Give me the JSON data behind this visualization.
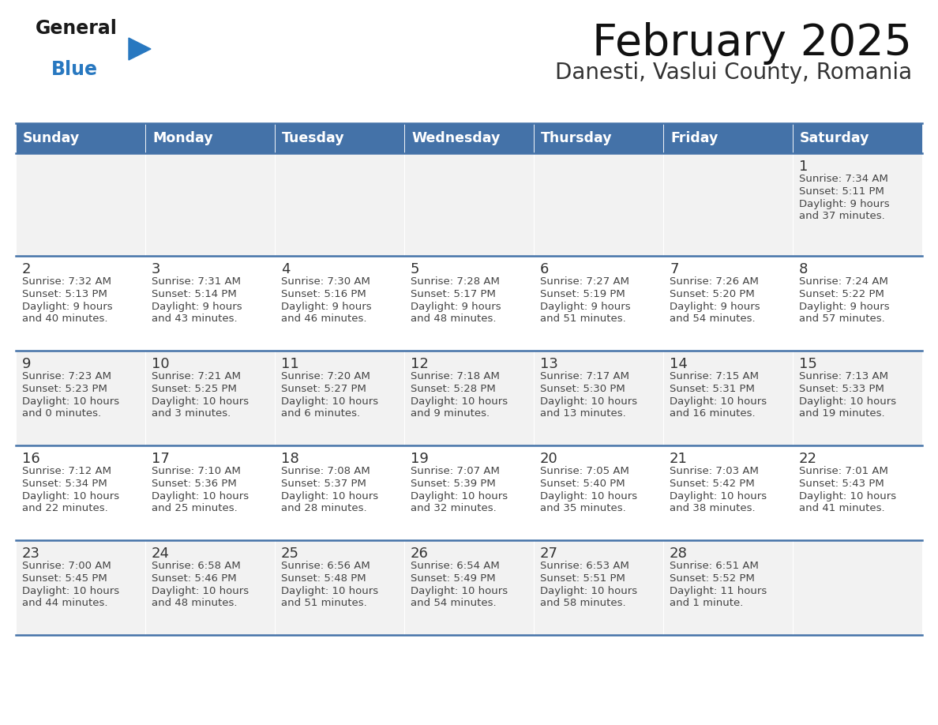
{
  "title": "February 2025",
  "subtitle": "Danesti, Vaslui County, Romania",
  "logo_text_general": "General",
  "logo_text_blue": "Blue",
  "days_of_week": [
    "Sunday",
    "Monday",
    "Tuesday",
    "Wednesday",
    "Thursday",
    "Friday",
    "Saturday"
  ],
  "header_bg_color": "#4472A8",
  "header_text_color": "#FFFFFF",
  "cell_bg_row0": "#F2F2F2",
  "cell_bg_row1": "#FFFFFF",
  "cell_bg_row2": "#F2F2F2",
  "cell_bg_row3": "#FFFFFF",
  "cell_bg_row4": "#F2F2F2",
  "day_number_color": "#333333",
  "day_text_color": "#444444",
  "title_color": "#111111",
  "subtitle_color": "#333333",
  "line_color": "#4472A8",
  "logo_general_color": "#1a1a1a",
  "logo_blue_color": "#2878C0",
  "logo_triangle_color": "#2878C0",
  "calendar_data": [
    [
      null,
      null,
      null,
      null,
      null,
      null,
      {
        "day": 1,
        "sunrise": "7:34 AM",
        "sunset": "5:11 PM",
        "daylight": "9 hours and 37 minutes."
      }
    ],
    [
      {
        "day": 2,
        "sunrise": "7:32 AM",
        "sunset": "5:13 PM",
        "daylight": "9 hours and 40 minutes."
      },
      {
        "day": 3,
        "sunrise": "7:31 AM",
        "sunset": "5:14 PM",
        "daylight": "9 hours and 43 minutes."
      },
      {
        "day": 4,
        "sunrise": "7:30 AM",
        "sunset": "5:16 PM",
        "daylight": "9 hours and 46 minutes."
      },
      {
        "day": 5,
        "sunrise": "7:28 AM",
        "sunset": "5:17 PM",
        "daylight": "9 hours and 48 minutes."
      },
      {
        "day": 6,
        "sunrise": "7:27 AM",
        "sunset": "5:19 PM",
        "daylight": "9 hours and 51 minutes."
      },
      {
        "day": 7,
        "sunrise": "7:26 AM",
        "sunset": "5:20 PM",
        "daylight": "9 hours and 54 minutes."
      },
      {
        "day": 8,
        "sunrise": "7:24 AM",
        "sunset": "5:22 PM",
        "daylight": "9 hours and 57 minutes."
      }
    ],
    [
      {
        "day": 9,
        "sunrise": "7:23 AM",
        "sunset": "5:23 PM",
        "daylight": "10 hours and 0 minutes."
      },
      {
        "day": 10,
        "sunrise": "7:21 AM",
        "sunset": "5:25 PM",
        "daylight": "10 hours and 3 minutes."
      },
      {
        "day": 11,
        "sunrise": "7:20 AM",
        "sunset": "5:27 PM",
        "daylight": "10 hours and 6 minutes."
      },
      {
        "day": 12,
        "sunrise": "7:18 AM",
        "sunset": "5:28 PM",
        "daylight": "10 hours and 9 minutes."
      },
      {
        "day": 13,
        "sunrise": "7:17 AM",
        "sunset": "5:30 PM",
        "daylight": "10 hours and 13 minutes."
      },
      {
        "day": 14,
        "sunrise": "7:15 AM",
        "sunset": "5:31 PM",
        "daylight": "10 hours and 16 minutes."
      },
      {
        "day": 15,
        "sunrise": "7:13 AM",
        "sunset": "5:33 PM",
        "daylight": "10 hours and 19 minutes."
      }
    ],
    [
      {
        "day": 16,
        "sunrise": "7:12 AM",
        "sunset": "5:34 PM",
        "daylight": "10 hours and 22 minutes."
      },
      {
        "day": 17,
        "sunrise": "7:10 AM",
        "sunset": "5:36 PM",
        "daylight": "10 hours and 25 minutes."
      },
      {
        "day": 18,
        "sunrise": "7:08 AM",
        "sunset": "5:37 PM",
        "daylight": "10 hours and 28 minutes."
      },
      {
        "day": 19,
        "sunrise": "7:07 AM",
        "sunset": "5:39 PM",
        "daylight": "10 hours and 32 minutes."
      },
      {
        "day": 20,
        "sunrise": "7:05 AM",
        "sunset": "5:40 PM",
        "daylight": "10 hours and 35 minutes."
      },
      {
        "day": 21,
        "sunrise": "7:03 AM",
        "sunset": "5:42 PM",
        "daylight": "10 hours and 38 minutes."
      },
      {
        "day": 22,
        "sunrise": "7:01 AM",
        "sunset": "5:43 PM",
        "daylight": "10 hours and 41 minutes."
      }
    ],
    [
      {
        "day": 23,
        "sunrise": "7:00 AM",
        "sunset": "5:45 PM",
        "daylight": "10 hours and 44 minutes."
      },
      {
        "day": 24,
        "sunrise": "6:58 AM",
        "sunset": "5:46 PM",
        "daylight": "10 hours and 48 minutes."
      },
      {
        "day": 25,
        "sunrise": "6:56 AM",
        "sunset": "5:48 PM",
        "daylight": "10 hours and 51 minutes."
      },
      {
        "day": 26,
        "sunrise": "6:54 AM",
        "sunset": "5:49 PM",
        "daylight": "10 hours and 54 minutes."
      },
      {
        "day": 27,
        "sunrise": "6:53 AM",
        "sunset": "5:51 PM",
        "daylight": "10 hours and 58 minutes."
      },
      {
        "day": 28,
        "sunrise": "6:51 AM",
        "sunset": "5:52 PM",
        "daylight": "11 hours and 1 minute."
      },
      null
    ]
  ]
}
